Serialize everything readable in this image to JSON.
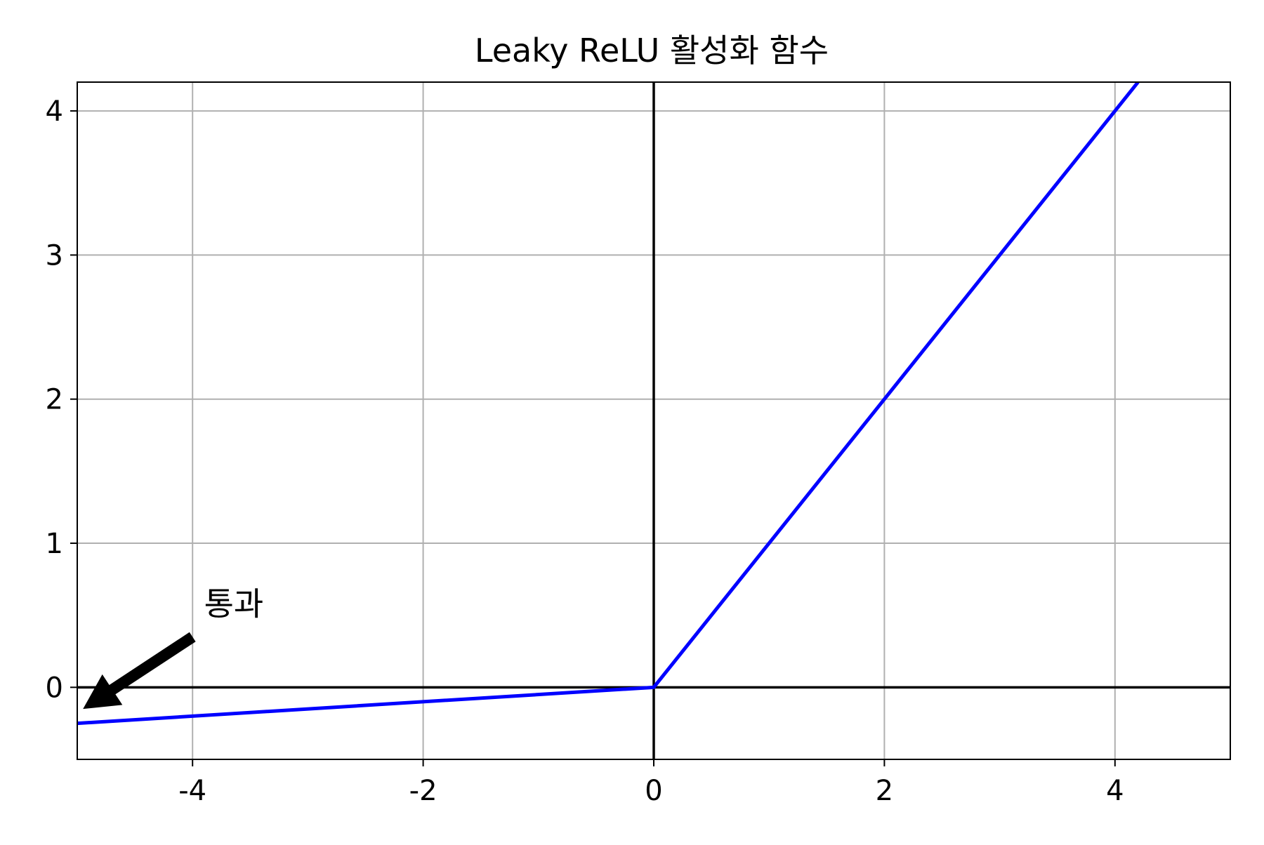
{
  "chart_data": {
    "type": "line",
    "title": "Leaky ReLU 활성화 함수",
    "xlabel": "",
    "ylabel": "",
    "xlim": [
      -5,
      5
    ],
    "ylim": [
      -0.5,
      4.2
    ],
    "xticks": [
      -4,
      -2,
      0,
      2,
      4
    ],
    "yticks": [
      0,
      1,
      2,
      3,
      4
    ],
    "xtick_labels": [
      "-4",
      "-2",
      "0",
      "2",
      "4"
    ],
    "ytick_labels": [
      "0",
      "1",
      "2",
      "3",
      "4"
    ],
    "grid": true,
    "legend": "none",
    "reference_lines": {
      "horizontal_y": 0,
      "vertical_x": 0,
      "color": "#000000"
    },
    "series": [
      {
        "color": "#0000ff",
        "x": [
          -5,
          0,
          4.2
        ],
        "y": [
          -0.25,
          0,
          4.2
        ]
      }
    ],
    "annotations": [
      {
        "text": "통과",
        "text_xy": [
          -3.9,
          0.5
        ],
        "arrow_from": [
          -4,
          0.35
        ],
        "arrow_to": [
          -4.95,
          -0.15
        ]
      }
    ]
  },
  "colors": {
    "line": "#0000ff",
    "grid": "#b0b0b0",
    "axes": "#000000",
    "background": "#ffffff"
  }
}
